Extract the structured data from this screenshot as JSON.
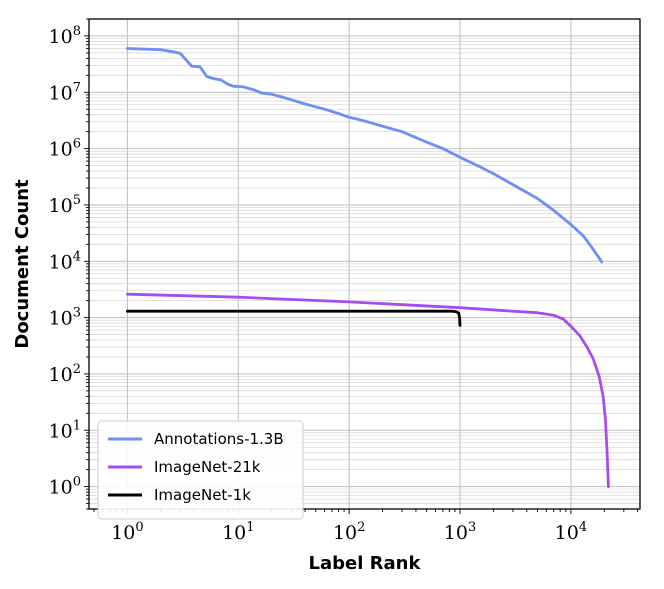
{
  "chart_data": {
    "type": "line",
    "xlabel": "Label Rank",
    "ylabel": "Document Count",
    "xscale": "log",
    "yscale": "log",
    "xlim": [
      0.45,
      42000
    ],
    "ylim": [
      0.4,
      200000000
    ],
    "x_ticks": [
      {
        "value": 1,
        "base": "10",
        "exp": "0"
      },
      {
        "value": 10,
        "base": "10",
        "exp": "1"
      },
      {
        "value": 100,
        "base": "10",
        "exp": "2"
      },
      {
        "value": 1000,
        "base": "10",
        "exp": "3"
      },
      {
        "value": 10000,
        "base": "10",
        "exp": "4"
      }
    ],
    "y_ticks": [
      {
        "value": 1,
        "base": "10",
        "exp": "0"
      },
      {
        "value": 10,
        "base": "10",
        "exp": "1"
      },
      {
        "value": 100,
        "base": "10",
        "exp": "2"
      },
      {
        "value": 1000,
        "base": "10",
        "exp": "3"
      },
      {
        "value": 10000,
        "base": "10",
        "exp": "4"
      },
      {
        "value": 100000,
        "base": "10",
        "exp": "5"
      },
      {
        "value": 1000000,
        "base": "10",
        "exp": "6"
      },
      {
        "value": 10000000,
        "base": "10",
        "exp": "7"
      },
      {
        "value": 100000000,
        "base": "10",
        "exp": "8"
      }
    ],
    "grid": true,
    "legend_position": "bottom-left",
    "series": [
      {
        "name": "Annotations-1.3B",
        "color": "#6f8ff5",
        "points": [
          [
            1,
            60000000
          ],
          [
            2,
            57000000
          ],
          [
            2.5,
            53000000
          ],
          [
            3,
            49000000
          ],
          [
            3.8,
            29000000
          ],
          [
            4.5,
            28500000
          ],
          [
            5.2,
            19000000
          ],
          [
            6,
            17500000
          ],
          [
            7,
            16500000
          ],
          [
            8,
            14000000
          ],
          [
            9,
            12800000
          ],
          [
            11,
            12500000
          ],
          [
            14,
            11000000
          ],
          [
            16,
            9800000
          ],
          [
            20,
            9200000
          ],
          [
            25,
            8200000
          ],
          [
            30,
            7400000
          ],
          [
            40,
            6200000
          ],
          [
            60,
            5000000
          ],
          [
            80,
            4200000
          ],
          [
            100,
            3600000
          ],
          [
            130,
            3200000
          ],
          [
            200,
            2500000
          ],
          [
            300,
            2000000
          ],
          [
            500,
            1300000
          ],
          [
            700,
            1000000
          ],
          [
            1000,
            700000
          ],
          [
            1500,
            480000
          ],
          [
            2000,
            360000
          ],
          [
            3000,
            230000
          ],
          [
            5000,
            130000
          ],
          [
            7000,
            80000
          ],
          [
            10000,
            45000
          ],
          [
            13000,
            28000
          ],
          [
            16000,
            16000
          ],
          [
            19000,
            9700
          ]
        ]
      },
      {
        "name": "ImageNet-21k",
        "color": "#a64df0",
        "points": [
          [
            1,
            2600
          ],
          [
            10,
            2300
          ],
          [
            100,
            1900
          ],
          [
            1000,
            1500
          ],
          [
            3000,
            1300
          ],
          [
            5000,
            1220
          ],
          [
            7000,
            1100
          ],
          [
            8500,
            950
          ],
          [
            10000,
            700
          ],
          [
            12000,
            480
          ],
          [
            14000,
            300
          ],
          [
            16000,
            180
          ],
          [
            18000,
            90
          ],
          [
            19500,
            40
          ],
          [
            20500,
            15
          ],
          [
            21200,
            4
          ],
          [
            21800,
            1
          ]
        ]
      },
      {
        "name": "ImageNet-1k",
        "color": "#000000",
        "points": [
          [
            1,
            1300
          ],
          [
            100,
            1300
          ],
          [
            700,
            1300
          ],
          [
            850,
            1300
          ],
          [
            930,
            1270
          ],
          [
            970,
            1200
          ],
          [
            990,
            1000
          ],
          [
            1000,
            730
          ]
        ]
      }
    ]
  }
}
